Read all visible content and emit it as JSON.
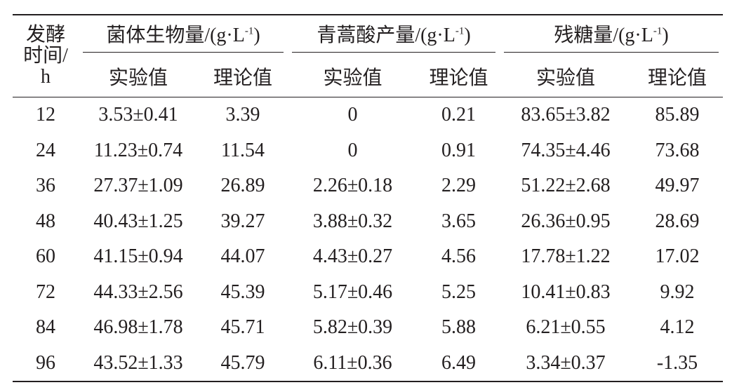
{
  "table": {
    "corner": [
      "发酵",
      "时间/",
      "h"
    ],
    "groups": [
      {
        "name": "菌体生物量/(g·L",
        "sup": "-1",
        "close": ")"
      },
      {
        "name": "青蒿酸产量/(g·L",
        "sup": "-1",
        "close": ")"
      },
      {
        "name": "残糖量/(g·L",
        "sup": "-1",
        "close": ")"
      }
    ],
    "subheaders": [
      "实验值",
      "理论值",
      "实验值",
      "理论值",
      "实验值",
      "理论值"
    ],
    "rows": [
      [
        "12",
        "3.53±0.41",
        "3.39",
        "0",
        "0.21",
        "83.65±3.82",
        "85.89"
      ],
      [
        "24",
        "11.23±0.74",
        "11.54",
        "0",
        "0.91",
        "74.35±4.46",
        "73.68"
      ],
      [
        "36",
        "27.37±1.09",
        "26.89",
        "2.26±0.18",
        "2.29",
        "51.22±2.68",
        "49.97"
      ],
      [
        "48",
        "40.43±1.25",
        "39.27",
        "3.88±0.32",
        "3.65",
        "26.36±0.95",
        "28.69"
      ],
      [
        "60",
        "41.15±0.94",
        "44.07",
        "4.43±0.27",
        "4.56",
        "17.78±1.22",
        "17.02"
      ],
      [
        "72",
        "44.33±2.56",
        "45.39",
        "5.17±0.46",
        "5.25",
        "10.41±0.83",
        "9.92"
      ],
      [
        "84",
        "46.98±1.78",
        "45.71",
        "5.82±0.39",
        "5.88",
        "6.21±0.55",
        "4.12"
      ],
      [
        "96",
        "43.52±1.33",
        "45.79",
        "6.11±0.36",
        "6.49",
        "3.34±0.37",
        "-1.35"
      ]
    ]
  }
}
